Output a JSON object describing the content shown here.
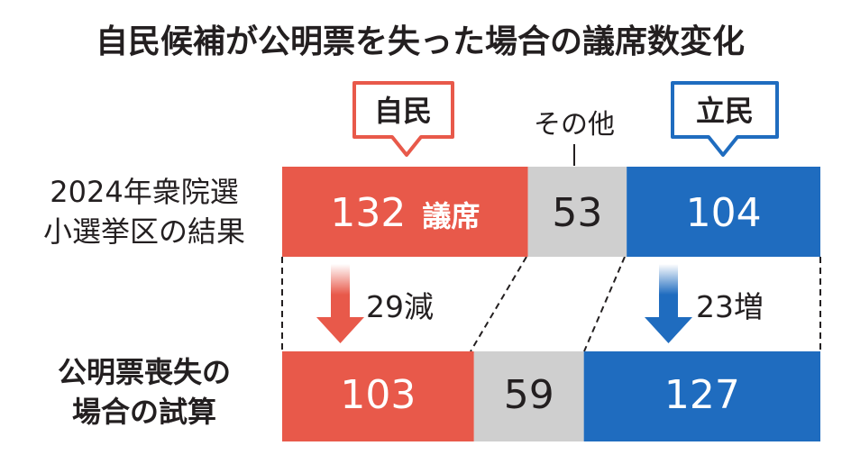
{
  "title": "自民候補が公明票を失った場合の議席数変化",
  "rows": {
    "top_label": [
      "2024年衆院選",
      "小選挙区の結果"
    ],
    "bottom_label": [
      "公明票喪失の",
      "場合の試算"
    ]
  },
  "parties": {
    "ldp": "自民",
    "other": "その他",
    "cdp": "立民"
  },
  "unit": "議席",
  "changes": {
    "ldp": "29減",
    "cdp": "23増"
  },
  "colors": {
    "ldp": "#e8594a",
    "other": "#cfcfcf",
    "cdp": "#1f6cbf",
    "text": "#231f20"
  },
  "chart_data": {
    "type": "bar",
    "layout": "stacked-horizontal",
    "categories": [
      "2024年衆院選小選挙区の結果",
      "公明票喪失の場合の試算"
    ],
    "series": [
      {
        "name": "自民",
        "values": [
          132,
          103
        ]
      },
      {
        "name": "その他",
        "values": [
          53,
          59
        ]
      },
      {
        "name": "立民",
        "values": [
          104,
          127
        ]
      }
    ],
    "title": "自民候補が公明票を失った場合の議席数変化"
  }
}
